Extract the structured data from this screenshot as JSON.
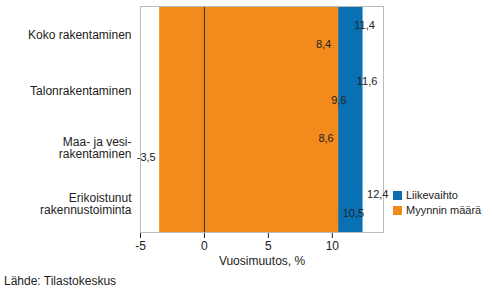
{
  "chart_data": {
    "type": "bar",
    "orientation": "horizontal",
    "categories": [
      "Koko rakentaminen",
      "Talonrakentaminen",
      "Maa- ja vesi-\nrakentaminen",
      "Erikoistunut\nrakennustoiminta"
    ],
    "series": [
      {
        "name": "Liikevaihto",
        "color": "#0a70b4",
        "values": [
          11.4,
          11.6,
          8.6,
          12.4
        ],
        "value_labels": [
          "11,4",
          "11,6",
          "8,6",
          "12,4"
        ]
      },
      {
        "name": "Myynnin määrä",
        "color": "#f28a1c",
        "values": [
          8.4,
          9.6,
          -3.5,
          10.5
        ],
        "value_labels": [
          "8,4",
          "9,6",
          "-3,5",
          "10,5"
        ]
      }
    ],
    "xlabel": "Vuosimuutos, %",
    "xlim": [
      -5,
      14
    ],
    "xticks": [
      -5,
      0,
      5,
      10
    ],
    "grid": false,
    "legend": "lower right",
    "data_labels": true,
    "caption": "Lähde: Tilastokeskus"
  }
}
